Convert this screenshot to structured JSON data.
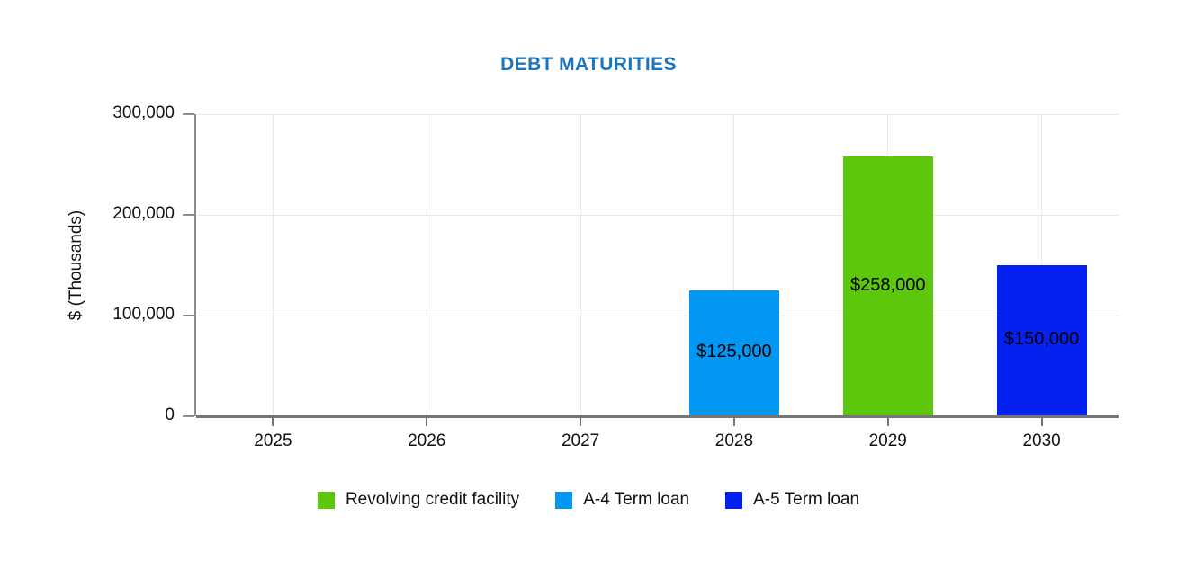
{
  "chart_data": {
    "type": "bar",
    "title": "DEBT MATURITIES",
    "title_color": "#1B75BC",
    "ylabel": "$ (Thousands)",
    "xlabel": "",
    "ylim": [
      0,
      300000
    ],
    "yticks": [
      {
        "value": 0,
        "label": "0"
      },
      {
        "value": 100000,
        "label": "100,000"
      },
      {
        "value": 200000,
        "label": "200,000"
      },
      {
        "value": 300000,
        "label": "300,000"
      }
    ],
    "categories": [
      "2025",
      "2026",
      "2027",
      "2028",
      "2029",
      "2030"
    ],
    "grid": true,
    "legend_position": "bottom",
    "series": [
      {
        "name": "Revolving credit facility",
        "color": "#5CC70D",
        "values": [
          0,
          0,
          0,
          0,
          258000,
          0
        ]
      },
      {
        "name": "A-4 Term loan",
        "color": "#0397F3",
        "values": [
          0,
          0,
          0,
          125000,
          0,
          0
        ]
      },
      {
        "name": "A-5 Term loan",
        "color": "#0421F0",
        "values": [
          0,
          0,
          0,
          0,
          0,
          150000
        ]
      }
    ],
    "points": [
      {
        "category": "2028",
        "series": "A-4 Term loan",
        "value": 125000,
        "label": "$125,000"
      },
      {
        "category": "2029",
        "series": "Revolving credit facility",
        "value": 258000,
        "label": "$258,000"
      },
      {
        "category": "2030",
        "series": "A-5 Term loan",
        "value": 150000,
        "label": "$150,000"
      }
    ]
  }
}
